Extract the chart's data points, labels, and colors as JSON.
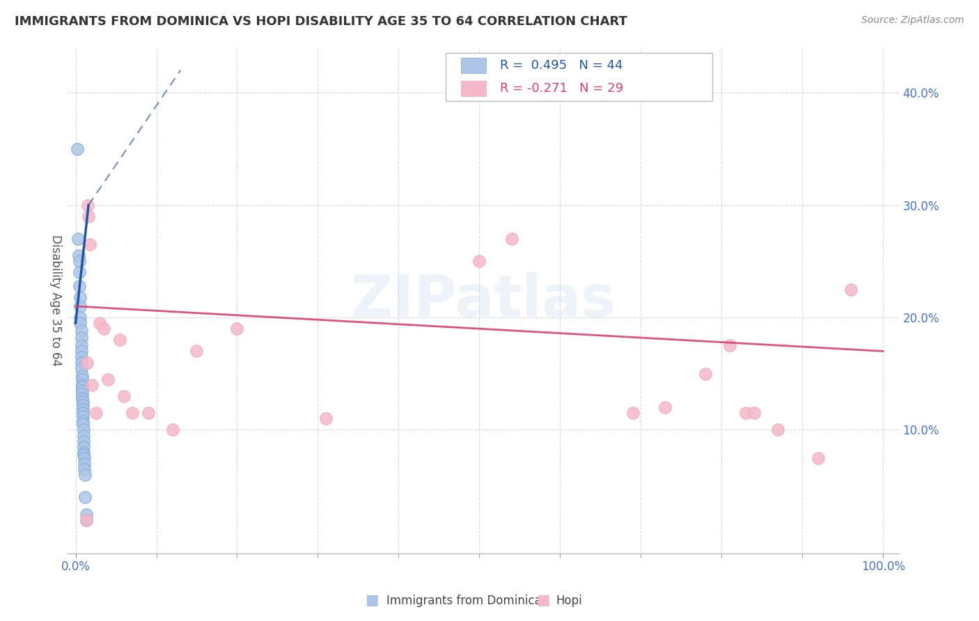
{
  "title": "IMMIGRANTS FROM DOMINICA VS HOPI DISABILITY AGE 35 TO 64 CORRELATION CHART",
  "source": "Source: ZipAtlas.com",
  "ylabel": "Disability Age 35 to 64",
  "blue_label": "Immigrants from Dominica",
  "pink_label": "Hopi",
  "blue_R": 0.495,
  "blue_N": 44,
  "pink_R": -0.271,
  "pink_N": 29,
  "xlim": [
    -0.01,
    1.02
  ],
  "ylim": [
    -0.01,
    0.44
  ],
  "xtick_vals": [
    0.0,
    1.0
  ],
  "xtick_labels": [
    "0.0%",
    "100.0%"
  ],
  "ytick_vals": [
    0.1,
    0.2,
    0.3,
    0.4
  ],
  "ytick_labels": [
    "10.0%",
    "20.0%",
    "30.0%",
    "40.0%"
  ],
  "blue_color": "#adc6e8",
  "blue_edge_color": "#7aa8d8",
  "blue_line_color": "#2255a0",
  "pink_color": "#f5b8c8",
  "pink_edge_color": "#eda8bc",
  "pink_line_color": "#d94070",
  "blue_scatter": [
    [
      0.002,
      0.35
    ],
    [
      0.003,
      0.27
    ],
    [
      0.004,
      0.255
    ],
    [
      0.005,
      0.25
    ],
    [
      0.005,
      0.24
    ],
    [
      0.005,
      0.228
    ],
    [
      0.006,
      0.218
    ],
    [
      0.006,
      0.21
    ],
    [
      0.006,
      0.2
    ],
    [
      0.006,
      0.195
    ],
    [
      0.007,
      0.188
    ],
    [
      0.007,
      0.182
    ],
    [
      0.007,
      0.175
    ],
    [
      0.007,
      0.17
    ],
    [
      0.007,
      0.165
    ],
    [
      0.007,
      0.16
    ],
    [
      0.007,
      0.155
    ],
    [
      0.008,
      0.148
    ],
    [
      0.008,
      0.145
    ],
    [
      0.008,
      0.14
    ],
    [
      0.008,
      0.138
    ],
    [
      0.008,
      0.135
    ],
    [
      0.008,
      0.132
    ],
    [
      0.008,
      0.128
    ],
    [
      0.009,
      0.125
    ],
    [
      0.009,
      0.122
    ],
    [
      0.009,
      0.118
    ],
    [
      0.009,
      0.115
    ],
    [
      0.009,
      0.112
    ],
    [
      0.009,
      0.108
    ],
    [
      0.009,
      0.105
    ],
    [
      0.01,
      0.1
    ],
    [
      0.01,
      0.095
    ],
    [
      0.01,
      0.09
    ],
    [
      0.01,
      0.085
    ],
    [
      0.01,
      0.08
    ],
    [
      0.01,
      0.078
    ],
    [
      0.011,
      0.075
    ],
    [
      0.011,
      0.07
    ],
    [
      0.011,
      0.065
    ],
    [
      0.012,
      0.06
    ],
    [
      0.012,
      0.04
    ],
    [
      0.013,
      0.025
    ],
    [
      0.013,
      0.02
    ]
  ],
  "pink_scatter": [
    [
      0.013,
      0.02
    ],
    [
      0.014,
      0.16
    ],
    [
      0.015,
      0.3
    ],
    [
      0.016,
      0.29
    ],
    [
      0.018,
      0.265
    ],
    [
      0.02,
      0.14
    ],
    [
      0.025,
      0.115
    ],
    [
      0.03,
      0.195
    ],
    [
      0.035,
      0.19
    ],
    [
      0.04,
      0.145
    ],
    [
      0.055,
      0.18
    ],
    [
      0.06,
      0.13
    ],
    [
      0.07,
      0.115
    ],
    [
      0.09,
      0.115
    ],
    [
      0.12,
      0.1
    ],
    [
      0.15,
      0.17
    ],
    [
      0.2,
      0.19
    ],
    [
      0.31,
      0.11
    ],
    [
      0.5,
      0.25
    ],
    [
      0.54,
      0.27
    ],
    [
      0.69,
      0.115
    ],
    [
      0.73,
      0.12
    ],
    [
      0.78,
      0.15
    ],
    [
      0.81,
      0.175
    ],
    [
      0.83,
      0.115
    ],
    [
      0.84,
      0.115
    ],
    [
      0.87,
      0.1
    ],
    [
      0.92,
      0.075
    ],
    [
      0.96,
      0.225
    ]
  ],
  "blue_solid_line": [
    [
      0.0,
      0.195
    ],
    [
      0.016,
      0.3
    ]
  ],
  "blue_dashed_line": [
    [
      0.016,
      0.3
    ],
    [
      0.13,
      0.42
    ]
  ],
  "pink_solid_line": [
    [
      0.0,
      0.21
    ],
    [
      1.0,
      0.17
    ]
  ],
  "watermark_text": "ZIPatlas",
  "grid_color": "#d8d8d8",
  "bg_color": "#ffffff",
  "tick_color": "#4472c4",
  "title_fontsize": 13,
  "axis_label_fontsize": 12,
  "tick_fontsize": 12,
  "legend_fontsize": 13
}
